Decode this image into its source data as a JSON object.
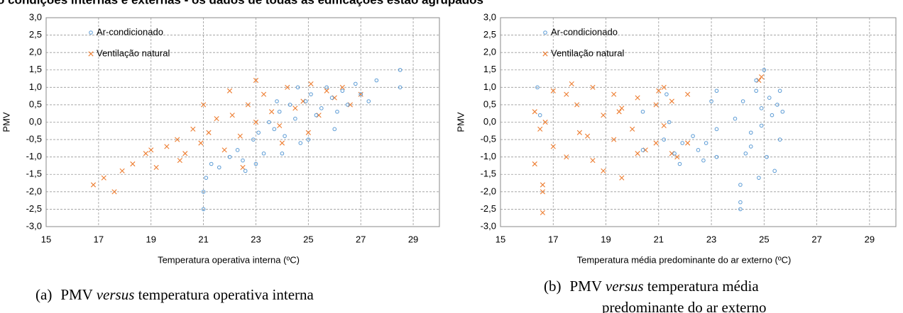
{
  "title": "o condições internas e externas - os dados de todas as edificações estão agrupados",
  "chart_data": [
    {
      "type": "scatter",
      "xlabel": "Temperatura  operativa  interna (ºC)",
      "ylabel": "PMV",
      "xlim": [
        15,
        30
      ],
      "xticks": [
        15,
        17,
        19,
        21,
        23,
        25,
        27,
        29
      ],
      "ylim": [
        -3,
        3
      ],
      "yticks": [
        {
          "value": -3,
          "label": "-3,0"
        },
        {
          "value": -2.5,
          "label": "-2,5"
        },
        {
          "value": -2,
          "label": "-2,0"
        },
        {
          "value": -1.5,
          "label": "-1,5"
        },
        {
          "value": -1,
          "label": "-1,0"
        },
        {
          "value": -0.5,
          "label": "-0,5"
        },
        {
          "value": 0,
          "label": "0,0"
        },
        {
          "value": 0.5,
          "label": "0,5"
        },
        {
          "value": 1,
          "label": "1,0"
        },
        {
          "value": 1.5,
          "label": "1,5"
        },
        {
          "value": 2,
          "label": "2,0"
        },
        {
          "value": 2.5,
          "label": "2,5"
        },
        {
          "value": 3,
          "label": "3,0"
        }
      ],
      "grid": true,
      "series": [
        {
          "name": "Ar-condicionado",
          "color": "#5b9bd5",
          "marker": "circle",
          "x": [
            21.0,
            21.0,
            21.1,
            21.3,
            21.6,
            22.0,
            22.3,
            22.6,
            22.9,
            23.1,
            23.3,
            23.5,
            23.7,
            23.9,
            24.1,
            24.3,
            24.5,
            24.7,
            24.9,
            25.1,
            25.3,
            25.5,
            25.7,
            25.9,
            26.1,
            26.3,
            26.5,
            26.8,
            27.0,
            27.3,
            27.6,
            28.5,
            28.5,
            22.5,
            23.0,
            24.0,
            25.0,
            26.0,
            24.6,
            23.8
          ],
          "values": [
            -2.5,
            -2.0,
            -1.6,
            -1.2,
            -1.3,
            -1.0,
            -0.8,
            -1.4,
            -0.5,
            -0.3,
            -0.9,
            0.0,
            -0.2,
            0.3,
            -0.4,
            0.5,
            0.1,
            -0.6,
            0.6,
            0.8,
            0.2,
            0.4,
            1.0,
            0.7,
            0.3,
            0.9,
            0.5,
            1.1,
            0.8,
            0.6,
            1.2,
            1.5,
            1.0,
            -1.1,
            -1.2,
            -0.9,
            -0.5,
            -0.2,
            1.0,
            0.6
          ]
        },
        {
          "name": "Ventilação natural",
          "color": "#ed7d31",
          "marker": "cross",
          "x": [
            16.8,
            17.2,
            17.6,
            17.9,
            18.3,
            18.8,
            19.2,
            19.6,
            20.0,
            20.3,
            20.6,
            20.9,
            21.2,
            21.5,
            21.8,
            22.1,
            22.4,
            22.7,
            23.0,
            23.3,
            23.6,
            23.9,
            24.2,
            24.5,
            24.8,
            25.1,
            25.4,
            25.7,
            26.0,
            26.3,
            26.6,
            27.0,
            20.1,
            21.0,
            22.0,
            23.0,
            24.0,
            25.0,
            19.0,
            22.5
          ],
          "values": [
            -1.8,
            -1.6,
            -2.0,
            -1.4,
            -1.2,
            -0.9,
            -1.3,
            -0.7,
            -0.5,
            -0.9,
            -0.2,
            -0.6,
            -0.3,
            0.1,
            -0.8,
            0.2,
            -0.4,
            0.5,
            0.0,
            0.8,
            0.3,
            -0.1,
            1.0,
            0.4,
            0.6,
            1.1,
            0.2,
            0.9,
            0.7,
            1.0,
            0.5,
            0.8,
            -1.1,
            0.5,
            0.9,
            1.2,
            -0.6,
            -0.3,
            -0.8,
            -1.3
          ]
        }
      ]
    },
    {
      "type": "scatter",
      "xlabel": "Temperatura  média predominante  do ar externo  (ºC)",
      "ylabel": "PMV",
      "xlim": [
        15,
        30
      ],
      "xticks": [
        15,
        17,
        19,
        21,
        23,
        25,
        27,
        29
      ],
      "ylim": [
        -3,
        3
      ],
      "yticks": [
        {
          "value": -3,
          "label": "-3,0"
        },
        {
          "value": -2.5,
          "label": "-2,5"
        },
        {
          "value": -2,
          "label": "-2,0"
        },
        {
          "value": -1.5,
          "label": "-1,5"
        },
        {
          "value": -1,
          "label": "-1,0"
        },
        {
          "value": -0.5,
          "label": "-0,5"
        },
        {
          "value": 0,
          "label": "0,0"
        },
        {
          "value": 0.5,
          "label": "0,5"
        },
        {
          "value": 1,
          "label": "1,0"
        },
        {
          "value": 1.5,
          "label": "1,5"
        },
        {
          "value": 2,
          "label": "2,0"
        },
        {
          "value": 2.5,
          "label": "2,5"
        },
        {
          "value": 3,
          "label": "3,0"
        }
      ],
      "grid": true,
      "series": [
        {
          "name": "Ar-condicionado",
          "color": "#5b9bd5",
          "marker": "circle",
          "x": [
            16.4,
            16.5,
            20.4,
            20.4,
            21.2,
            21.3,
            21.4,
            21.6,
            21.8,
            22.3,
            22.5,
            22.8,
            23.2,
            23.2,
            23.2,
            24.1,
            24.1,
            24.1,
            24.2,
            24.5,
            24.5,
            24.7,
            24.7,
            24.9,
            24.9,
            25.0,
            25.1,
            25.2,
            25.3,
            25.4,
            25.5,
            25.6,
            25.6,
            24.3,
            24.8,
            23.9,
            23.0,
            21.9,
            22.7,
            25.7
          ],
          "values": [
            1.0,
            0.2,
            0.3,
            -0.8,
            -0.5,
            0.8,
            0.0,
            -0.9,
            -1.2,
            -0.4,
            -0.8,
            -0.6,
            0.9,
            -0.2,
            -1.0,
            -1.8,
            -2.3,
            -2.5,
            0.6,
            -0.7,
            -0.3,
            0.9,
            1.2,
            0.4,
            -0.1,
            1.5,
            -1.0,
            0.7,
            0.2,
            -1.4,
            0.5,
            -0.5,
            0.9,
            -0.9,
            -1.6,
            0.1,
            0.6,
            -0.6,
            -1.1,
            0.3
          ]
        },
        {
          "name": "Ventilação natural",
          "color": "#ed7d31",
          "marker": "cross",
          "x": [
            16.3,
            16.3,
            16.6,
            16.6,
            16.7,
            17.0,
            17.0,
            17.5,
            17.5,
            17.9,
            18.0,
            18.5,
            18.5,
            18.9,
            18.9,
            19.3,
            19.3,
            19.6,
            19.6,
            20.0,
            20.2,
            20.2,
            20.9,
            20.9,
            21.2,
            21.2,
            21.5,
            21.5,
            22.1,
            22.1,
            16.6,
            17.7,
            18.3,
            19.5,
            20.5,
            21.0,
            21.7,
            24.8,
            24.9,
            16.5
          ],
          "values": [
            0.3,
            -1.2,
            -1.8,
            -2.6,
            0.0,
            0.9,
            -0.7,
            0.8,
            -1.0,
            0.5,
            -0.3,
            1.0,
            -1.1,
            0.2,
            -1.4,
            0.8,
            -0.5,
            0.4,
            -1.6,
            -0.2,
            0.7,
            -0.9,
            0.5,
            -0.6,
            1.0,
            -0.1,
            0.6,
            -0.9,
            0.8,
            -0.6,
            -2.0,
            1.1,
            -0.4,
            0.3,
            -0.8,
            0.9,
            -1.0,
            1.2,
            1.3,
            -0.2
          ]
        }
      ]
    }
  ],
  "captions": [
    {
      "label": "(a)",
      "parts": [
        "PMV",
        "versus",
        "temperatura operativa interna"
      ]
    },
    {
      "label": "(b)",
      "parts": [
        "PMV",
        "versus",
        "temperatura média",
        "predominante do ar externo"
      ]
    }
  ]
}
